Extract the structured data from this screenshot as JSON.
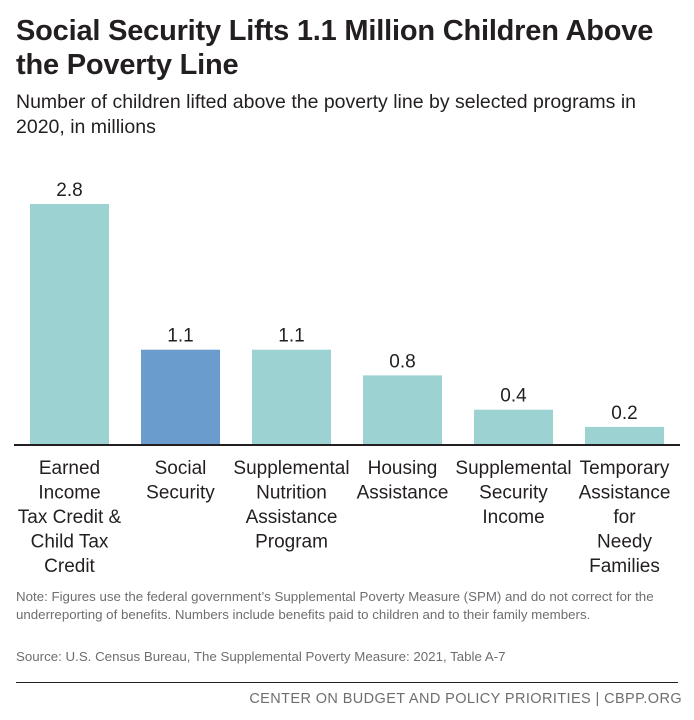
{
  "title": "Social Security Lifts 1.1 Million Children Above the Poverty Line",
  "subtitle": "Number of children lifted above the poverty line by selected programs in 2020, in millions",
  "note": "Note: Figures use the federal government’s Supplemental Poverty Measure (SPM) and do not correct for the underreporting of benefits. Numbers include benefits paid to children and to their family members.",
  "source": "Source: U.S. Census Bureau, The Supplemental Poverty Measure: 2021, Table A-7",
  "footer": "CENTER ON BUDGET AND POLICY PRIORITIES | CBPP.ORG",
  "colors": {
    "highlight": "#6a9ccd",
    "default": "#9dd2d2",
    "axis": "#231f20",
    "label": "#231f20"
  },
  "chart_data": {
    "type": "bar",
    "categories": [
      [
        "Earned",
        "Income",
        "Tax Credit &",
        "Child Tax",
        "Credit"
      ],
      [
        "Social",
        "Security"
      ],
      [
        "Supplemental",
        "Nutrition",
        "Assistance",
        "Program"
      ],
      [
        "Housing",
        "Assistance"
      ],
      [
        "Supplemental",
        "Security",
        "Income"
      ],
      [
        "Temporary",
        "Assistance",
        "for",
        "Needy",
        "Families"
      ]
    ],
    "values": [
      2.8,
      1.1,
      1.1,
      0.8,
      0.4,
      0.2
    ],
    "value_labels": [
      "2.8",
      "1.1",
      "1.1",
      "0.8",
      "0.4",
      "0.2"
    ],
    "highlight_index": 1,
    "ylim": [
      0,
      2.8
    ],
    "grid": false,
    "legend": "none"
  }
}
